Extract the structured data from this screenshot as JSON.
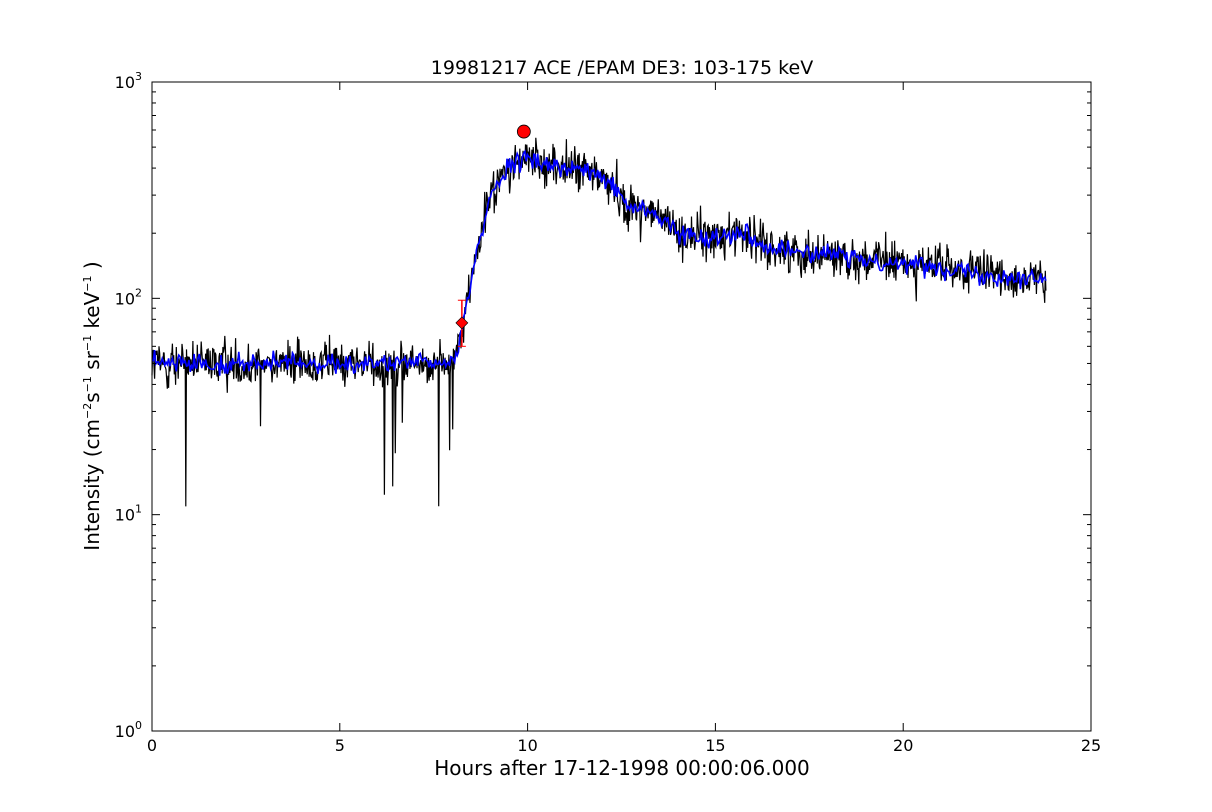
{
  "chart_data": {
    "type": "line",
    "title": "19981217 ACE /EPAM DE3: 103-175 keV",
    "xlabel": "Hours after 17-12-1998 00:00:06.000",
    "ylabel": {
      "prefix": "Intensity (cm",
      "sup1": "−2",
      "mid1": "s",
      "sup2": "−1",
      "mid2": " sr",
      "sup3": "−1",
      "mid3": " keV",
      "sup4": "−1",
      "suffix": " )"
    },
    "xlim": [
      0,
      25
    ],
    "ylim": [
      1,
      1000
    ],
    "yscale": "log",
    "xticks": [
      {
        "value": 0,
        "label": "0"
      },
      {
        "value": 5,
        "label": "5"
      },
      {
        "value": 10,
        "label": "10"
      },
      {
        "value": 15,
        "label": "15"
      },
      {
        "value": 20,
        "label": "20"
      },
      {
        "value": 25,
        "label": "25"
      }
    ],
    "yticks": [
      {
        "value": 1,
        "base": "10",
        "exp": "0"
      },
      {
        "value": 10,
        "base": "10",
        "exp": "1"
      },
      {
        "value": 100,
        "base": "10",
        "exp": "2"
      },
      {
        "value": 1000,
        "base": "10",
        "exp": "3"
      }
    ],
    "grid": false,
    "legend": "none",
    "series": [
      {
        "role": "raw intensity",
        "color": "#000000",
        "profile": [
          [
            0.0,
            50
          ],
          [
            7.9,
            50
          ],
          [
            8.15,
            58
          ],
          [
            8.3,
            80
          ],
          [
            8.6,
            150
          ],
          [
            9.0,
            300
          ],
          [
            9.3,
            360
          ],
          [
            9.7,
            420
          ],
          [
            10.0,
            440
          ],
          [
            10.5,
            420
          ],
          [
            11.0,
            400
          ],
          [
            11.5,
            390
          ],
          [
            12.0,
            360
          ],
          [
            12.3,
            330
          ],
          [
            12.6,
            270
          ],
          [
            13.0,
            260
          ],
          [
            13.5,
            240
          ],
          [
            14.0,
            200
          ],
          [
            14.5,
            195
          ],
          [
            15.0,
            190
          ],
          [
            15.5,
            205
          ],
          [
            15.9,
            200
          ],
          [
            16.2,
            175
          ],
          [
            17.0,
            165
          ],
          [
            18.0,
            160
          ],
          [
            19.0,
            150
          ],
          [
            20.0,
            145
          ],
          [
            21.0,
            140
          ],
          [
            22.0,
            130
          ],
          [
            23.0,
            125
          ],
          [
            23.8,
            120
          ]
        ],
        "noise_dex": 0.13
      },
      {
        "role": "smoothed intensity",
        "color": "#0000ff",
        "profile": [
          [
            0.0,
            50
          ],
          [
            7.9,
            50
          ],
          [
            8.15,
            58
          ],
          [
            8.3,
            80
          ],
          [
            8.6,
            150
          ],
          [
            9.0,
            300
          ],
          [
            9.3,
            360
          ],
          [
            9.7,
            420
          ],
          [
            10.0,
            440
          ],
          [
            10.5,
            420
          ],
          [
            11.0,
            400
          ],
          [
            11.5,
            390
          ],
          [
            12.0,
            360
          ],
          [
            12.3,
            330
          ],
          [
            12.6,
            270
          ],
          [
            13.0,
            260
          ],
          [
            13.5,
            240
          ],
          [
            14.0,
            200
          ],
          [
            14.5,
            195
          ],
          [
            15.0,
            190
          ],
          [
            15.5,
            205
          ],
          [
            15.9,
            200
          ],
          [
            16.2,
            175
          ],
          [
            17.0,
            165
          ],
          [
            18.0,
            160
          ],
          [
            19.0,
            150
          ],
          [
            20.0,
            145
          ],
          [
            21.0,
            140
          ],
          [
            22.0,
            130
          ],
          [
            23.0,
            125
          ],
          [
            23.8,
            120
          ]
        ],
        "noise_dex": 0.055
      }
    ],
    "markers": [
      {
        "name": "onset",
        "shape": "diamond",
        "x": 8.25,
        "y": 77,
        "color": "#ff0000"
      },
      {
        "name": "peak",
        "shape": "circle",
        "x": 9.9,
        "y": 590,
        "color": "#ff0000"
      }
    ],
    "onset_errorbar": {
      "x": 8.25,
      "y_low": 60,
      "y_high": 98,
      "color": "#ff0000"
    }
  }
}
